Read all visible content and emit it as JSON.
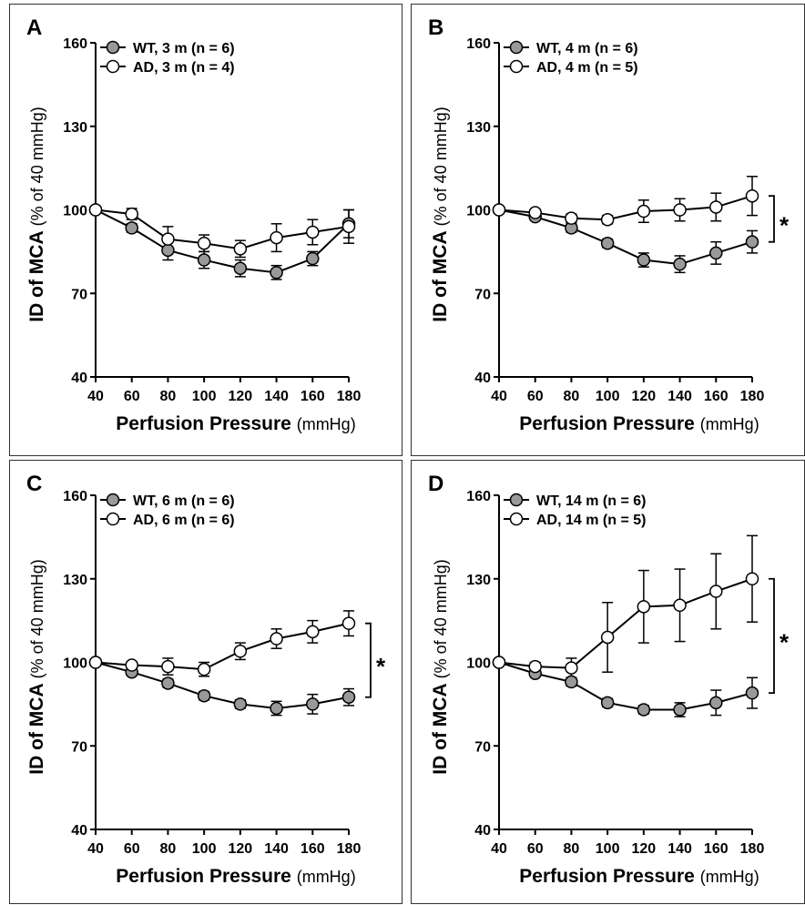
{
  "chart_data": [
    {
      "panel": "A",
      "type": "line",
      "x": [
        40,
        60,
        80,
        100,
        120,
        140,
        160,
        180
      ],
      "xlim": [
        40,
        180
      ],
      "ylim": [
        40,
        160
      ],
      "yticks": [
        40,
        70,
        100,
        130,
        160
      ],
      "xticks": [
        40,
        60,
        80,
        100,
        120,
        140,
        160,
        180
      ],
      "xlabel_bold": "Perfusion Pressure",
      "xlabel_unit": "(mmHg)",
      "ylabel_bold": "ID of MCA",
      "ylabel_unit": "(% of 40 mmHg)",
      "legend_placement": "top-left",
      "significance": "",
      "series": [
        {
          "name": "WT, 3 m (n = 6)",
          "fill": "#999999",
          "values": [
            100,
            93.5,
            85.5,
            82,
            79,
            77.5,
            82.5,
            95
          ],
          "errors": [
            0,
            1.5,
            3.5,
            3,
            3,
            2.5,
            2.5,
            5
          ]
        },
        {
          "name": "AD, 3 m (n = 4)",
          "fill": "#ffffff",
          "values": [
            100,
            98.5,
            89.5,
            88,
            86,
            90,
            92,
            94
          ],
          "errors": [
            0,
            2,
            4.5,
            3,
            3,
            5,
            4.5,
            6
          ]
        }
      ]
    },
    {
      "panel": "B",
      "type": "line",
      "x": [
        40,
        60,
        80,
        100,
        120,
        140,
        160,
        180
      ],
      "xlim": [
        40,
        180
      ],
      "ylim": [
        40,
        160
      ],
      "yticks": [
        40,
        70,
        100,
        130,
        160
      ],
      "xticks": [
        40,
        60,
        80,
        100,
        120,
        140,
        160,
        180
      ],
      "xlabel_bold": "Perfusion Pressure",
      "xlabel_unit": "(mmHg)",
      "ylabel_bold": "ID of MCA",
      "ylabel_unit": "(% of 40 mmHg)",
      "legend_placement": "top-left",
      "significance": "*",
      "series": [
        {
          "name": "WT, 4 m (n = 6)",
          "fill": "#999999",
          "values": [
            100,
            97.5,
            93.5,
            88,
            82,
            80.5,
            84.5,
            88.5
          ],
          "errors": [
            0,
            1,
            1.5,
            1.5,
            2.5,
            3,
            4,
            4
          ]
        },
        {
          "name": "AD, 4 m (n = 5)",
          "fill": "#ffffff",
          "values": [
            100,
            99,
            97,
            96.5,
            99.5,
            100,
            101,
            105
          ],
          "errors": [
            0,
            1,
            1.5,
            1.5,
            4,
            4,
            5,
            7
          ]
        }
      ]
    },
    {
      "panel": "C",
      "type": "line",
      "x": [
        40,
        60,
        80,
        100,
        120,
        140,
        160,
        180
      ],
      "xlim": [
        40,
        180
      ],
      "ylim": [
        40,
        160
      ],
      "yticks": [
        40,
        70,
        100,
        130,
        160
      ],
      "xticks": [
        40,
        60,
        80,
        100,
        120,
        140,
        160,
        180
      ],
      "xlabel_bold": "Perfusion Pressure",
      "xlabel_unit": "(mmHg)",
      "ylabel_bold": "ID of MCA",
      "ylabel_unit": "(% of 40 mmHg)",
      "legend_placement": "top-left",
      "significance": "*",
      "series": [
        {
          "name": "WT, 6 m (n = 6)",
          "fill": "#999999",
          "values": [
            100,
            96.5,
            92.5,
            88,
            85,
            83.5,
            85,
            87.5
          ],
          "errors": [
            0,
            1,
            1.5,
            1.5,
            1.5,
            2.5,
            3.5,
            3
          ]
        },
        {
          "name": "AD, 6 m (n = 6)",
          "fill": "#ffffff",
          "values": [
            100,
            99,
            98.5,
            97.5,
            104,
            108.5,
            111,
            114
          ],
          "errors": [
            0,
            1,
            3,
            2.5,
            3,
            3.5,
            4,
            4.5
          ]
        }
      ]
    },
    {
      "panel": "D",
      "type": "line",
      "x": [
        40,
        60,
        80,
        100,
        120,
        140,
        160,
        180
      ],
      "xlim": [
        40,
        180
      ],
      "ylim": [
        40,
        160
      ],
      "yticks": [
        40,
        70,
        100,
        130,
        160
      ],
      "xticks": [
        40,
        60,
        80,
        100,
        120,
        140,
        160,
        180
      ],
      "xlabel_bold": "Perfusion Pressure",
      "xlabel_unit": "(mmHg)",
      "ylabel_bold": "ID of MCA",
      "ylabel_unit": "(% of 40 mmHg)",
      "legend_placement": "top-left",
      "significance": "*",
      "series": [
        {
          "name": "WT, 14 m (n = 6)",
          "fill": "#999999",
          "values": [
            100,
            96,
            93,
            85.5,
            83,
            83,
            85.5,
            89
          ],
          "errors": [
            0,
            1,
            1.5,
            1.5,
            1.5,
            2.5,
            4.5,
            5.5
          ]
        },
        {
          "name": "AD, 14 m (n = 5)",
          "fill": "#ffffff",
          "values": [
            100,
            98.5,
            98,
            109,
            120,
            120.5,
            125.5,
            130
          ],
          "errors": [
            0,
            1.5,
            3.5,
            12.5,
            13,
            13,
            13.5,
            15.5
          ]
        }
      ]
    }
  ]
}
